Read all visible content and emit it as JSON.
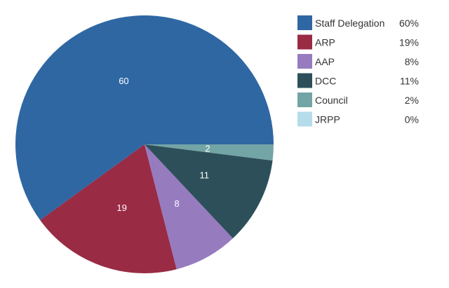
{
  "chart_data": {
    "type": "pie",
    "title": "",
    "slices": [
      {
        "name": "Staff Delegation",
        "value": 60,
        "data_label": "60",
        "legend_pct": "60%",
        "color": "#2f67a3"
      },
      {
        "name": "ARP",
        "value": 19,
        "data_label": "19",
        "legend_pct": "19%",
        "color": "#992b45"
      },
      {
        "name": "AAP",
        "value": 8,
        "data_label": "8",
        "legend_pct": "8%",
        "color": "#967bbf"
      },
      {
        "name": "DCC",
        "value": 11,
        "data_label": "11",
        "legend_pct": "11%",
        "color": "#2d4f5a"
      },
      {
        "name": "Council",
        "value": 2,
        "data_label": "2",
        "legend_pct": "2%",
        "color": "#73a4a6"
      },
      {
        "name": "JRPP",
        "value": 0,
        "data_label": "",
        "legend_pct": "0%",
        "color": "#b5dcea"
      }
    ],
    "legend_position": "right"
  }
}
